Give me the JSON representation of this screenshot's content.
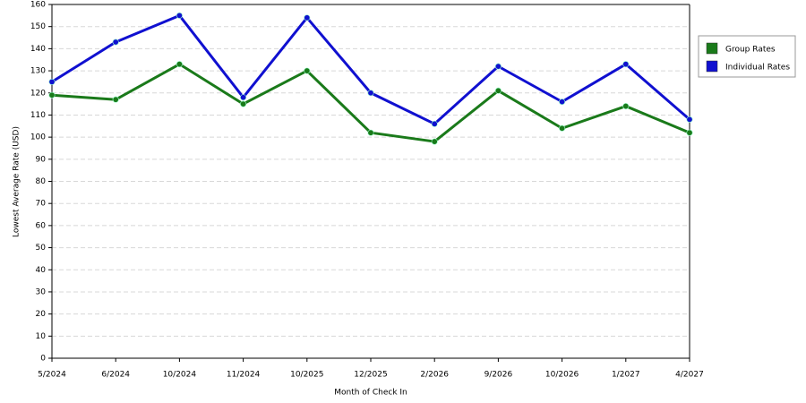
{
  "chart_data": {
    "type": "line",
    "x_label": "Month of Check In",
    "y_label": "Lowest Average Rate (USD)",
    "categories": [
      "5/2024",
      "6/2024",
      "10/2024",
      "11/2024",
      "10/2025",
      "12/2025",
      "2/2026",
      "9/2026",
      "10/2026",
      "1/2027",
      "4/2027"
    ],
    "series": [
      {
        "name": "Group Rates",
        "color": "#1a7a1a",
        "values": [
          119,
          117,
          133,
          115,
          130,
          102,
          98,
          121,
          104,
          114,
          102
        ]
      },
      {
        "name": "Individual Rates",
        "color": "#1010d0",
        "values": [
          125,
          143,
          155,
          118,
          154,
          120,
          106,
          132,
          116,
          133,
          108
        ]
      }
    ],
    "ylim": [
      0,
      160
    ],
    "yticks": [
      0,
      10,
      20,
      30,
      40,
      50,
      60,
      70,
      80,
      90,
      100,
      110,
      120,
      130,
      140,
      150,
      160
    ],
    "grid": true,
    "legend": "right"
  }
}
